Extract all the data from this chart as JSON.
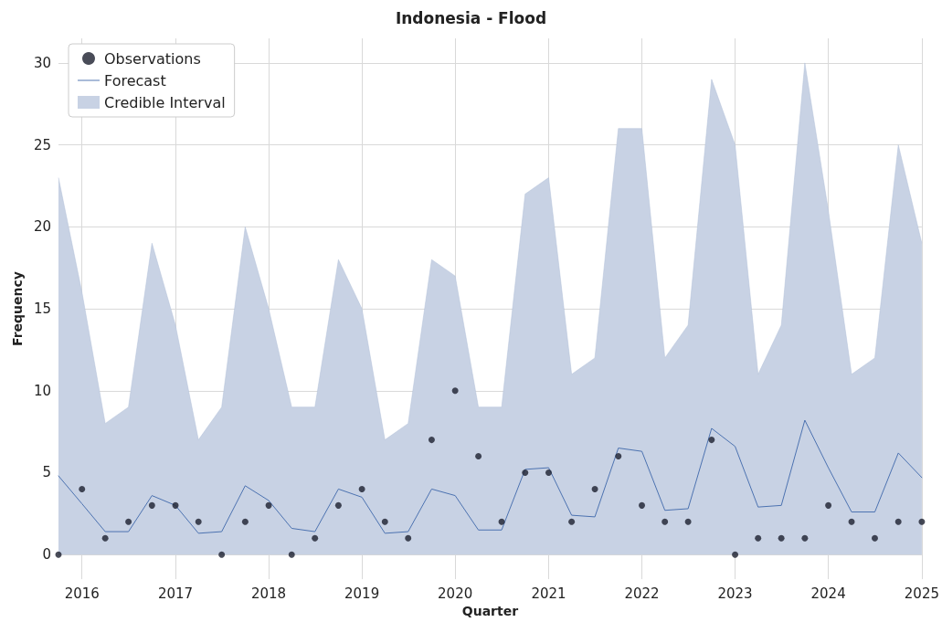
{
  "chart_data": {
    "type": "line",
    "title": "Indonesia - Flood",
    "xlabel": "Quarter",
    "ylabel": "Frequency",
    "x": [
      "2015-10",
      "2016-01",
      "2016-04",
      "2016-07",
      "2016-10",
      "2017-01",
      "2017-04",
      "2017-07",
      "2017-10",
      "2018-01",
      "2018-04",
      "2018-07",
      "2018-10",
      "2019-01",
      "2019-04",
      "2019-07",
      "2019-10",
      "2020-01",
      "2020-04",
      "2020-07",
      "2020-10",
      "2021-01",
      "2021-04",
      "2021-07",
      "2021-10",
      "2022-01",
      "2022-04",
      "2022-07",
      "2022-10",
      "2023-01",
      "2023-04",
      "2023-07",
      "2023-10",
      "2024-01",
      "2024-04",
      "2024-07",
      "2024-10",
      "2025-01"
    ],
    "series": [
      {
        "name": "Observations",
        "type": "scatter",
        "color": "#1c1f2e",
        "marker": "circle",
        "values": [
          0,
          4,
          1,
          2,
          3,
          3,
          2,
          0,
          2,
          3,
          0,
          1,
          3,
          4,
          2,
          1,
          7,
          10,
          6,
          2,
          5,
          5,
          2,
          4,
          6,
          3,
          2,
          2,
          7,
          0,
          1,
          1,
          1,
          3,
          2,
          1,
          2,
          2
        ]
      },
      {
        "name": "Forecast",
        "color": "#4c72b0",
        "marker": "none",
        "line_style": "solid",
        "values": [
          4.8,
          3.1,
          1.4,
          1.4,
          3.6,
          3.0,
          1.3,
          1.4,
          4.2,
          3.3,
          1.6,
          1.4,
          4.0,
          3.5,
          1.3,
          1.4,
          4.0,
          3.6,
          1.5,
          1.5,
          5.2,
          5.3,
          2.4,
          2.3,
          6.5,
          6.3,
          2.7,
          2.8,
          7.7,
          6.6,
          2.9,
          3.0,
          8.2,
          5.3,
          2.6,
          2.6,
          6.2,
          4.7
        ]
      },
      {
        "name": "Credible Interval",
        "type": "area",
        "color": "#c8d2e4",
        "values": [
          23,
          16,
          8,
          9,
          19,
          14,
          7,
          9,
          20,
          15,
          9,
          9,
          18,
          15,
          7,
          8,
          18,
          17,
          9,
          9,
          22,
          23,
          11,
          12,
          26,
          26,
          12,
          14,
          29,
          25,
          11,
          14,
          30,
          21,
          11,
          12,
          25,
          19
        ]
      }
    ],
    "xlim": [
      "2015-10",
      "2025-01"
    ],
    "xticks": [
      {
        "value": "2016-01",
        "label": "2016"
      },
      {
        "value": "2017-01",
        "label": "2017"
      },
      {
        "value": "2018-01",
        "label": "2018"
      },
      {
        "value": "2019-01",
        "label": "2019"
      },
      {
        "value": "2020-01",
        "label": "2020"
      },
      {
        "value": "2021-01",
        "label": "2021"
      },
      {
        "value": "2022-01",
        "label": "2022"
      },
      {
        "value": "2023-01",
        "label": "2023"
      },
      {
        "value": "2024-01",
        "label": "2024"
      },
      {
        "value": "2025-01",
        "label": "2025"
      }
    ],
    "ylim": [
      -1.5,
      31.5
    ],
    "yticks": [
      0,
      5,
      10,
      15,
      20,
      25,
      30
    ],
    "grid": true,
    "legend": "top left"
  }
}
